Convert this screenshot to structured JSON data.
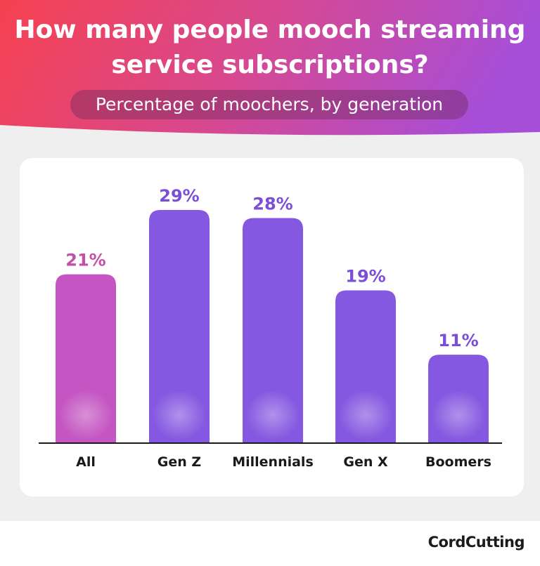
{
  "header": {
    "title_line1": "How many people mooch streaming",
    "title_line2": "service subscriptions?",
    "subtitle": "Percentage of moochers, by generation"
  },
  "footer": {
    "logo_text": "CordCutting"
  },
  "colors": {
    "header_gradient_start": "#f5414f",
    "header_gradient_mid": "#d8488f",
    "header_gradient_end": "#a64ed8",
    "all_bar": "#c455c2",
    "generation_bar": "#8458e0",
    "all_label": "#c44fa9",
    "generation_label": "#7a4fd6",
    "axis": "#1a1a1a",
    "card_background": "#ffffff",
    "page_background": "#efefef"
  },
  "chart_data": {
    "type": "bar",
    "categories": [
      "All",
      "Gen Z",
      "Millennials",
      "Gen X",
      "Boomers"
    ],
    "values": [
      21,
      29,
      28,
      19,
      11
    ],
    "value_labels": [
      "21%",
      "29%",
      "28%",
      "19%",
      "11%"
    ],
    "unit": "%",
    "title": "How many people mooch streaming service subscriptions?",
    "subtitle": "Percentage of moochers, by generation",
    "xlabel": "",
    "ylabel": "",
    "ylim": [
      0,
      29
    ],
    "grid": false,
    "legend": "none"
  }
}
